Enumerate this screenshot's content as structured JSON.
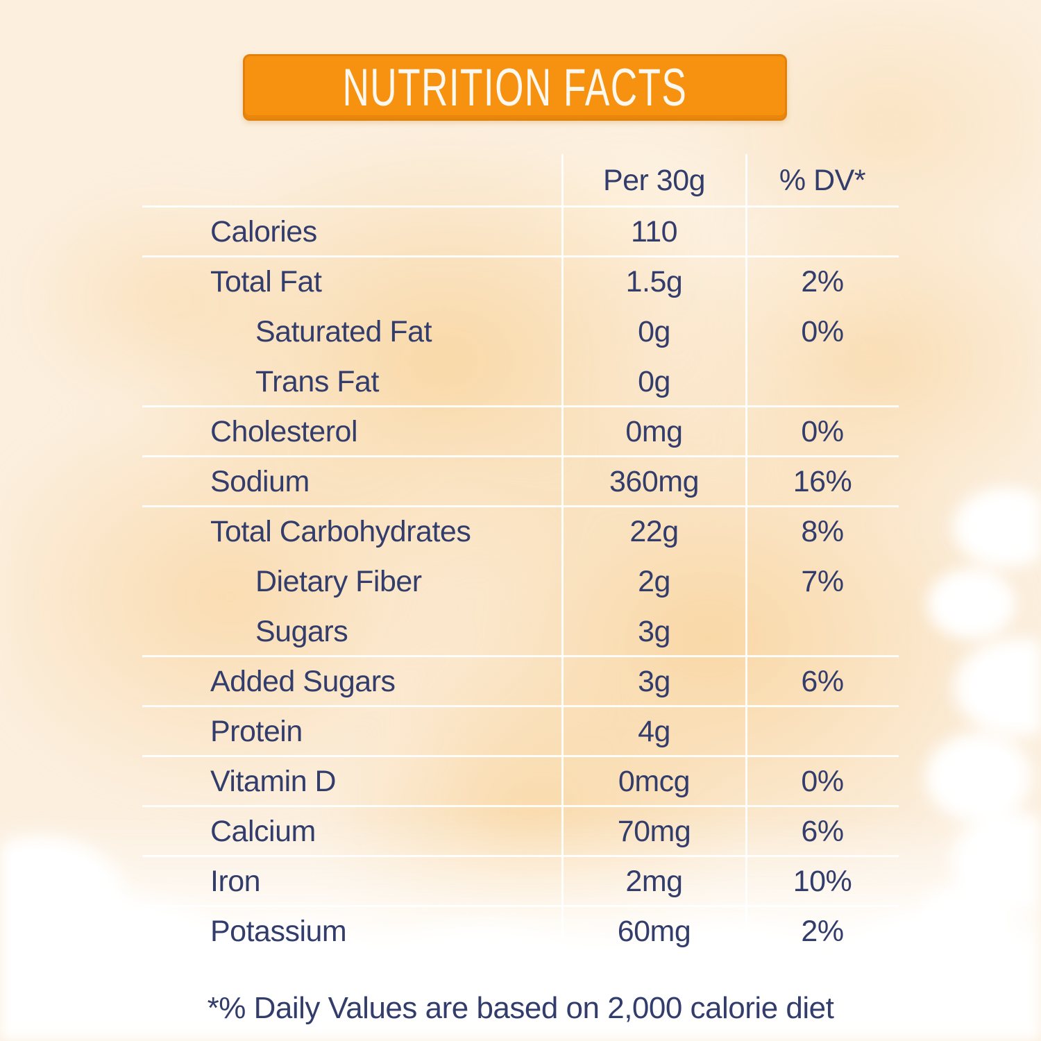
{
  "title": "NUTRITION FACTS",
  "table": {
    "column_headers": {
      "amount": "Per 30g",
      "dv": "% DV*"
    },
    "rows": [
      {
        "label": "Calories",
        "amount": "110",
        "dv": ""
      },
      {
        "label": "Total Fat",
        "amount": "1.5g",
        "dv": "2%"
      },
      {
        "label": "Saturated Fat",
        "amount": "0g",
        "dv": "0%"
      },
      {
        "label": "Trans Fat",
        "amount": "0g",
        "dv": ""
      },
      {
        "label": "Cholesterol",
        "amount": "0mg",
        "dv": "0%"
      },
      {
        "label": "Sodium",
        "amount": "360mg",
        "dv": "16%"
      },
      {
        "label": "Total Carbohydrates",
        "amount": "22g",
        "dv": "8%"
      },
      {
        "label": "Dietary Fiber",
        "amount": "2g",
        "dv": "7%"
      },
      {
        "label": "Sugars",
        "amount": "3g",
        "dv": ""
      },
      {
        "label": "Added Sugars",
        "amount": "3g",
        "dv": "6%"
      },
      {
        "label": "Protein",
        "amount": "4g",
        "dv": ""
      },
      {
        "label": "Vitamin D",
        "amount": "0mcg",
        "dv": "0%"
      },
      {
        "label": "Calcium",
        "amount": "70mg",
        "dv": "6%"
      },
      {
        "label": "Iron",
        "amount": "2mg",
        "dv": "10%"
      },
      {
        "label": "Potassium",
        "amount": "60mg",
        "dv": "2%"
      }
    ]
  },
  "footnote": "*% Daily Values are based on 2,000 calorie diet",
  "colors": {
    "banner_orange": "#F6920F",
    "banner_border": "#E2820D",
    "text_navy": "#333D6C",
    "divider_white": "#FFFFFF",
    "background_cream": "#FCEFDE",
    "background_peach": "#F8D5A5"
  }
}
